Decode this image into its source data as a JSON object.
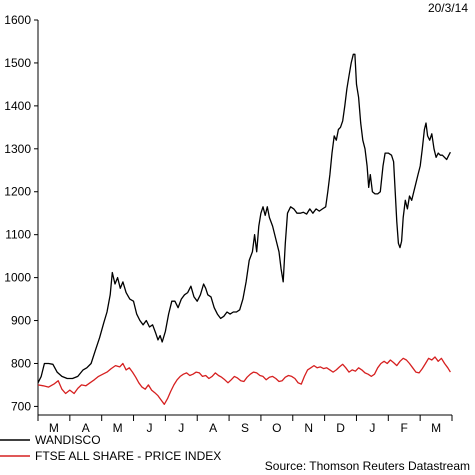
{
  "chart_data": {
    "type": "line",
    "date_label": "20/3/14",
    "source": "Source: Thomson Reuters Datastream",
    "y_ticks": [
      "700",
      "800",
      "900",
      "1000",
      "1100",
      "1200",
      "1300",
      "1400",
      "1500",
      "1600"
    ],
    "ylim": [
      680,
      1600
    ],
    "x_tick_labels": [
      "M",
      "A",
      "M",
      "J",
      "J",
      "A",
      "S",
      "O",
      "N",
      "D",
      "J",
      "F",
      "M"
    ],
    "grid": false,
    "legend_placement": "bottom-left",
    "series": [
      {
        "name": "WANDISCO",
        "color": "#000000",
        "points": [
          [
            0.0,
            755
          ],
          [
            0.6,
            770
          ],
          [
            1.2,
            800
          ],
          [
            2.0,
            800
          ],
          [
            2.8,
            798
          ],
          [
            3.6,
            780
          ],
          [
            4.5,
            770
          ],
          [
            5.5,
            765
          ],
          [
            6.5,
            765
          ],
          [
            7.5,
            770
          ],
          [
            8.5,
            785
          ],
          [
            9.2,
            790
          ],
          [
            10.0,
            800
          ],
          [
            10.8,
            830
          ],
          [
            11.6,
            860
          ],
          [
            12.4,
            895
          ],
          [
            13.0,
            920
          ],
          [
            13.6,
            960
          ],
          [
            14.0,
            1012
          ],
          [
            14.5,
            985
          ],
          [
            15.0,
            1000
          ],
          [
            15.5,
            975
          ],
          [
            16.0,
            990
          ],
          [
            16.6,
            965
          ],
          [
            17.3,
            950
          ],
          [
            18.0,
            945
          ],
          [
            18.6,
            915
          ],
          [
            19.2,
            900
          ],
          [
            19.8,
            890
          ],
          [
            20.4,
            900
          ],
          [
            21.0,
            885
          ],
          [
            21.6,
            890
          ],
          [
            22.2,
            870
          ],
          [
            22.6,
            855
          ],
          [
            23.0,
            865
          ],
          [
            23.4,
            850
          ],
          [
            24.0,
            875
          ],
          [
            24.6,
            915
          ],
          [
            25.2,
            945
          ],
          [
            25.8,
            945
          ],
          [
            26.4,
            930
          ],
          [
            27.0,
            950
          ],
          [
            27.6,
            960
          ],
          [
            28.2,
            965
          ],
          [
            28.8,
            980
          ],
          [
            29.4,
            955
          ],
          [
            30.0,
            945
          ],
          [
            30.6,
            960
          ],
          [
            31.2,
            985
          ],
          [
            31.6,
            975
          ],
          [
            32.0,
            960
          ],
          [
            32.6,
            955
          ],
          [
            33.2,
            930
          ],
          [
            33.8,
            915
          ],
          [
            34.4,
            905
          ],
          [
            35.0,
            910
          ],
          [
            35.6,
            920
          ],
          [
            36.2,
            915
          ],
          [
            36.8,
            920
          ],
          [
            37.4,
            920
          ],
          [
            38.0,
            925
          ],
          [
            38.6,
            950
          ],
          [
            39.2,
            990
          ],
          [
            39.8,
            1040
          ],
          [
            40.4,
            1060
          ],
          [
            40.8,
            1100
          ],
          [
            41.2,
            1060
          ],
          [
            41.6,
            1120
          ],
          [
            42.0,
            1150
          ],
          [
            42.4,
            1165
          ],
          [
            42.8,
            1145
          ],
          [
            43.2,
            1165
          ],
          [
            43.6,
            1140
          ],
          [
            44.2,
            1120
          ],
          [
            44.8,
            1090
          ],
          [
            45.4,
            1060
          ],
          [
            45.8,
            1020
          ],
          [
            46.2,
            990
          ],
          [
            46.6,
            1080
          ],
          [
            47.0,
            1150
          ],
          [
            47.6,
            1165
          ],
          [
            48.2,
            1160
          ],
          [
            48.8,
            1150
          ],
          [
            49.4,
            1150
          ],
          [
            50.0,
            1152
          ],
          [
            50.6,
            1148
          ],
          [
            51.2,
            1160
          ],
          [
            51.8,
            1150
          ],
          [
            52.4,
            1160
          ],
          [
            53.0,
            1155
          ],
          [
            53.6,
            1160
          ],
          [
            54.2,
            1165
          ],
          [
            54.6,
            1200
          ],
          [
            55.0,
            1240
          ],
          [
            55.4,
            1290
          ],
          [
            55.8,
            1330
          ],
          [
            56.2,
            1320
          ],
          [
            56.6,
            1345
          ],
          [
            57.0,
            1350
          ],
          [
            57.4,
            1365
          ],
          [
            57.8,
            1400
          ],
          [
            58.2,
            1440
          ],
          [
            58.6,
            1470
          ],
          [
            59.0,
            1500
          ],
          [
            59.4,
            1520
          ],
          [
            59.7,
            1520
          ],
          [
            60.0,
            1450
          ],
          [
            60.4,
            1420
          ],
          [
            60.8,
            1360
          ],
          [
            61.2,
            1320
          ],
          [
            61.6,
            1300
          ],
          [
            62.0,
            1260
          ],
          [
            62.3,
            1210
          ],
          [
            62.6,
            1240
          ],
          [
            63.0,
            1200
          ],
          [
            63.5,
            1195
          ],
          [
            64.0,
            1195
          ],
          [
            64.5,
            1200
          ],
          [
            65.0,
            1260
          ],
          [
            65.4,
            1290
          ],
          [
            66.0,
            1290
          ],
          [
            66.6,
            1285
          ],
          [
            67.0,
            1270
          ],
          [
            67.3,
            1200
          ],
          [
            67.6,
            1130
          ],
          [
            67.9,
            1080
          ],
          [
            68.2,
            1070
          ],
          [
            68.5,
            1085
          ],
          [
            68.8,
            1140
          ],
          [
            69.2,
            1180
          ],
          [
            69.6,
            1160
          ],
          [
            70.0,
            1190
          ],
          [
            70.4,
            1180
          ],
          [
            70.8,
            1200
          ],
          [
            71.2,
            1220
          ],
          [
            71.6,
            1240
          ],
          [
            72.0,
            1260
          ],
          [
            72.4,
            1300
          ],
          [
            72.8,
            1345
          ],
          [
            73.1,
            1360
          ],
          [
            73.4,
            1330
          ],
          [
            73.8,
            1320
          ],
          [
            74.2,
            1335
          ],
          [
            74.6,
            1300
          ],
          [
            75.0,
            1280
          ],
          [
            75.4,
            1290
          ],
          [
            75.8,
            1285
          ],
          [
            76.2,
            1285
          ],
          [
            76.6,
            1280
          ],
          [
            77.0,
            1275
          ],
          [
            77.4,
            1285
          ],
          [
            77.7,
            1292
          ]
        ]
      },
      {
        "name": "FTSE ALL SHARE - PRICE INDEX",
        "color": "#d62020",
        "points": [
          [
            0.0,
            750
          ],
          [
            1.0,
            748
          ],
          [
            2.0,
            745
          ],
          [
            3.0,
            752
          ],
          [
            3.8,
            760
          ],
          [
            4.5,
            740
          ],
          [
            5.2,
            730
          ],
          [
            6.0,
            738
          ],
          [
            6.8,
            730
          ],
          [
            7.5,
            742
          ],
          [
            8.2,
            750
          ],
          [
            9.0,
            748
          ],
          [
            9.8,
            755
          ],
          [
            10.6,
            762
          ],
          [
            11.4,
            770
          ],
          [
            12.2,
            775
          ],
          [
            13.0,
            780
          ],
          [
            13.8,
            788
          ],
          [
            14.6,
            795
          ],
          [
            15.4,
            792
          ],
          [
            16.0,
            800
          ],
          [
            16.6,
            785
          ],
          [
            17.2,
            790
          ],
          [
            17.8,
            780
          ],
          [
            18.4,
            768
          ],
          [
            19.0,
            755
          ],
          [
            19.6,
            745
          ],
          [
            20.2,
            740
          ],
          [
            20.8,
            750
          ],
          [
            21.4,
            738
          ],
          [
            22.0,
            732
          ],
          [
            22.6,
            725
          ],
          [
            23.2,
            715
          ],
          [
            23.8,
            705
          ],
          [
            24.4,
            718
          ],
          [
            25.0,
            735
          ],
          [
            25.6,
            750
          ],
          [
            26.2,
            762
          ],
          [
            26.8,
            770
          ],
          [
            27.4,
            775
          ],
          [
            28.0,
            778
          ],
          [
            28.6,
            772
          ],
          [
            29.2,
            775
          ],
          [
            29.8,
            780
          ],
          [
            30.4,
            778
          ],
          [
            31.0,
            770
          ],
          [
            31.6,
            772
          ],
          [
            32.2,
            765
          ],
          [
            32.8,
            770
          ],
          [
            33.4,
            778
          ],
          [
            34.0,
            772
          ],
          [
            34.6,
            768
          ],
          [
            35.2,
            762
          ],
          [
            35.8,
            755
          ],
          [
            36.4,
            762
          ],
          [
            37.0,
            770
          ],
          [
            37.6,
            766
          ],
          [
            38.2,
            760
          ],
          [
            38.8,
            758
          ],
          [
            39.4,
            768
          ],
          [
            40.0,
            775
          ],
          [
            40.6,
            780
          ],
          [
            41.2,
            778
          ],
          [
            41.8,
            772
          ],
          [
            42.4,
            770
          ],
          [
            43.0,
            762
          ],
          [
            43.6,
            768
          ],
          [
            44.2,
            770
          ],
          [
            44.8,
            765
          ],
          [
            45.4,
            758
          ],
          [
            46.0,
            760
          ],
          [
            46.6,
            768
          ],
          [
            47.2,
            772
          ],
          [
            47.8,
            770
          ],
          [
            48.4,
            765
          ],
          [
            49.0,
            755
          ],
          [
            49.6,
            752
          ],
          [
            50.2,
            770
          ],
          [
            50.8,
            785
          ],
          [
            51.4,
            790
          ],
          [
            52.0,
            795
          ],
          [
            52.6,
            790
          ],
          [
            53.2,
            792
          ],
          [
            53.8,
            788
          ],
          [
            54.4,
            790
          ],
          [
            55.0,
            785
          ],
          [
            55.6,
            780
          ],
          [
            56.2,
            785
          ],
          [
            56.8,
            792
          ],
          [
            57.4,
            798
          ],
          [
            58.0,
            790
          ],
          [
            58.6,
            780
          ],
          [
            59.2,
            785
          ],
          [
            59.8,
            782
          ],
          [
            60.4,
            790
          ],
          [
            61.0,
            785
          ],
          [
            61.6,
            778
          ],
          [
            62.2,
            775
          ],
          [
            62.8,
            770
          ],
          [
            63.4,
            775
          ],
          [
            64.0,
            790
          ],
          [
            64.6,
            800
          ],
          [
            65.2,
            805
          ],
          [
            65.8,
            800
          ],
          [
            66.4,
            808
          ],
          [
            67.0,
            802
          ],
          [
            67.6,
            795
          ],
          [
            68.2,
            805
          ],
          [
            68.8,
            812
          ],
          [
            69.4,
            808
          ],
          [
            70.0,
            800
          ],
          [
            70.6,
            790
          ],
          [
            71.2,
            780
          ],
          [
            71.8,
            778
          ],
          [
            72.4,
            788
          ],
          [
            73.0,
            800
          ],
          [
            73.6,
            812
          ],
          [
            74.2,
            808
          ],
          [
            74.8,
            815
          ],
          [
            75.4,
            805
          ],
          [
            76.0,
            812
          ],
          [
            76.6,
            800
          ],
          [
            77.2,
            790
          ],
          [
            77.7,
            780
          ]
        ]
      }
    ]
  }
}
